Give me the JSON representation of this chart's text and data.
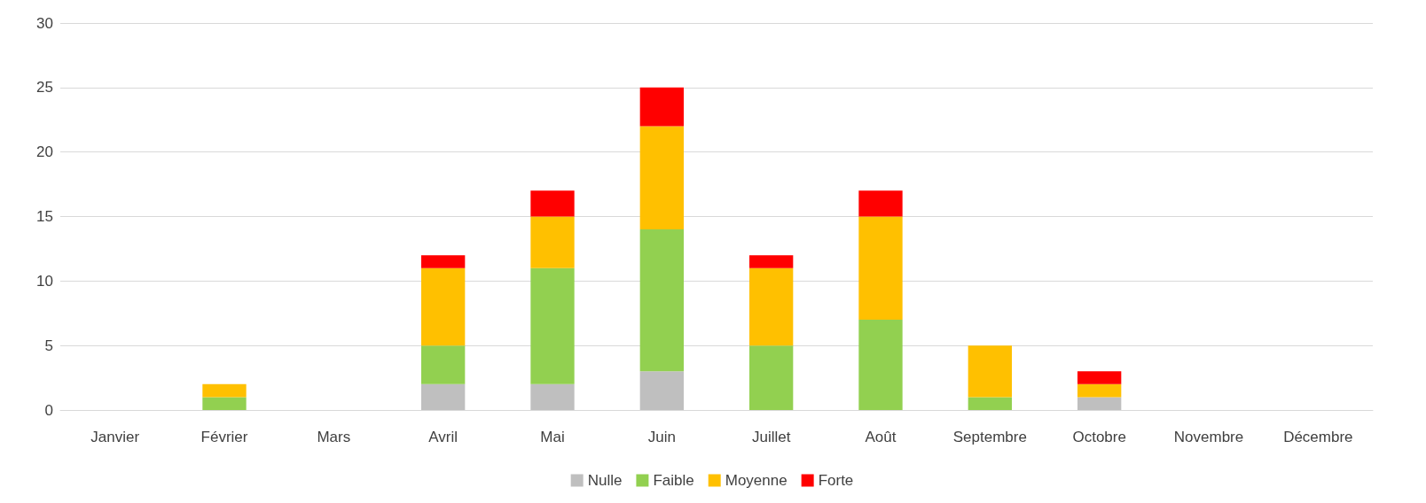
{
  "chart_data": {
    "type": "bar",
    "stacked": true,
    "categories": [
      "Janvier",
      "Février",
      "Mars",
      "Avril",
      "Mai",
      "Juin",
      "Juillet",
      "Août",
      "Septembre",
      "Octobre",
      "Novembre",
      "Décembre"
    ],
    "series": [
      {
        "name": "Nulle",
        "color": "#bfbfbf",
        "values": [
          0,
          0,
          0,
          2,
          2,
          3,
          0,
          0,
          0,
          1,
          0,
          0
        ]
      },
      {
        "name": "Faible",
        "color": "#92d050",
        "values": [
          0,
          1,
          0,
          3,
          9,
          11,
          5,
          7,
          1,
          0,
          0,
          0
        ]
      },
      {
        "name": "Moyenne",
        "color": "#ffc000",
        "values": [
          0,
          1,
          0,
          6,
          4,
          8,
          6,
          8,
          4,
          1,
          0,
          0
        ]
      },
      {
        "name": "Forte",
        "color": "#ff0000",
        "values": [
          0,
          0,
          0,
          1,
          2,
          3,
          1,
          2,
          0,
          1,
          0,
          0
        ]
      }
    ],
    "ylim": [
      0,
      30
    ],
    "yticks": [
      0,
      5,
      10,
      15,
      20,
      25,
      30
    ],
    "grid": "y",
    "legend": "bottom"
  }
}
